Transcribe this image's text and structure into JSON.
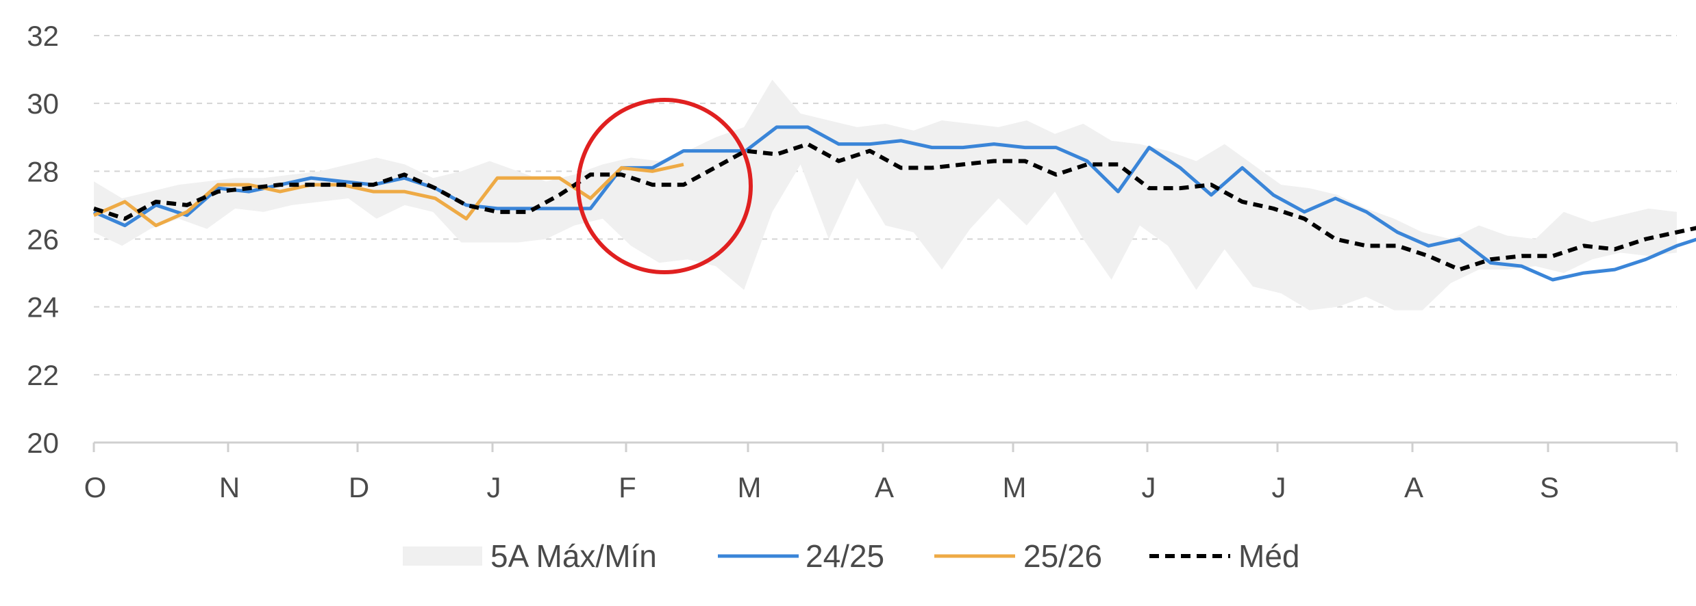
{
  "chart_data": {
    "type": "line",
    "title": "",
    "xlabel": "",
    "ylabel": "",
    "ylim": [
      20,
      32
    ],
    "yticks": [
      20,
      22,
      24,
      26,
      28,
      30,
      32
    ],
    "month_labels": [
      "O",
      "N",
      "D",
      "J",
      "F",
      "M",
      "A",
      "M",
      "J",
      "J",
      "A",
      "S"
    ],
    "grid": "horizontal dashed",
    "legend_position": "bottom",
    "band": {
      "name": "5A Máx/Mín",
      "color": "#f0f0f0",
      "max": [
        27.7,
        27.2,
        27.4,
        27.6,
        27.7,
        27.8,
        27.8,
        27.9,
        28.0,
        28.2,
        28.4,
        28.2,
        27.8,
        28.0,
        28.3,
        28.0,
        27.7,
        27.9,
        28.2,
        28.4,
        28.3,
        28.6,
        29.0,
        29.3,
        30.7,
        29.7,
        29.5,
        29.3,
        29.4,
        29.2,
        29.5,
        29.4,
        29.3,
        29.5,
        29.1,
        29.4,
        28.9,
        28.8,
        28.6,
        28.3,
        28.8,
        28.2,
        27.6,
        27.5,
        27.3,
        26.9,
        26.6,
        26.2,
        26.0,
        26.4,
        26.1,
        26.0,
        26.8,
        26.5,
        26.7,
        26.9,
        26.8
      ],
      "min": [
        26.2,
        25.8,
        26.3,
        26.6,
        26.3,
        26.9,
        26.8,
        27.0,
        27.1,
        27.2,
        26.6,
        27.0,
        26.8,
        25.9,
        25.9,
        25.9,
        26.0,
        26.4,
        26.6,
        25.8,
        25.3,
        25.4,
        25.2,
        24.5,
        26.8,
        28.2,
        26.0,
        27.8,
        26.4,
        26.2,
        25.1,
        26.3,
        27.2,
        26.4,
        27.4,
        26.0,
        24.8,
        26.4,
        25.8,
        24.5,
        25.7,
        24.6,
        24.4,
        23.9,
        24.0,
        24.3,
        23.9,
        23.9,
        24.7,
        25.1,
        25.1,
        25.2,
        25.0,
        25.4,
        25.6,
        25.5,
        25.6
      ]
    },
    "series": [
      {
        "name": "24/25",
        "color": "#3a85d8",
        "style": "solid",
        "values": [
          26.8,
          26.4,
          27.0,
          26.7,
          27.5,
          27.4,
          27.6,
          27.8,
          27.7,
          27.6,
          27.8,
          27.5,
          27.0,
          26.9,
          26.9,
          26.9,
          26.9,
          28.1,
          28.1,
          28.6,
          28.6,
          28.6,
          29.3,
          29.3,
          28.8,
          28.8,
          28.9,
          28.7,
          28.7,
          28.8,
          28.7,
          28.7,
          28.3,
          27.4,
          28.7,
          28.1,
          27.3,
          28.1,
          27.3,
          26.8,
          27.2,
          26.8,
          26.2,
          25.8,
          26.0,
          25.3,
          25.2,
          24.8,
          25.0,
          25.1,
          25.4,
          25.8,
          26.1,
          26.4,
          26.7
        ]
      },
      {
        "name": "25/26",
        "color": "#eeaa45",
        "style": "solid",
        "values": [
          26.7,
          27.1,
          26.4,
          26.8,
          27.6,
          27.6,
          27.4,
          27.6,
          27.6,
          27.4,
          27.4,
          27.2,
          26.6,
          27.8,
          27.8,
          27.8,
          27.2,
          28.1,
          28.0,
          28.2
        ]
      },
      {
        "name": "Méd",
        "color": "#000000",
        "style": "dashed",
        "values": [
          26.9,
          26.6,
          27.1,
          27.0,
          27.4,
          27.5,
          27.6,
          27.6,
          27.6,
          27.6,
          27.9,
          27.5,
          27.0,
          26.8,
          26.8,
          27.3,
          27.9,
          27.9,
          27.6,
          27.6,
          28.1,
          28.6,
          28.5,
          28.8,
          28.3,
          28.6,
          28.1,
          28.1,
          28.2,
          28.3,
          28.3,
          27.9,
          28.2,
          28.2,
          27.5,
          27.5,
          27.6,
          27.1,
          26.9,
          26.6,
          26.0,
          25.8,
          25.8,
          25.5,
          25.1,
          25.4,
          25.5,
          25.5,
          25.8,
          25.7,
          26.0,
          26.2,
          26.4
        ]
      }
    ],
    "annotation": {
      "shape": "circle",
      "color": "#e02020"
    }
  }
}
